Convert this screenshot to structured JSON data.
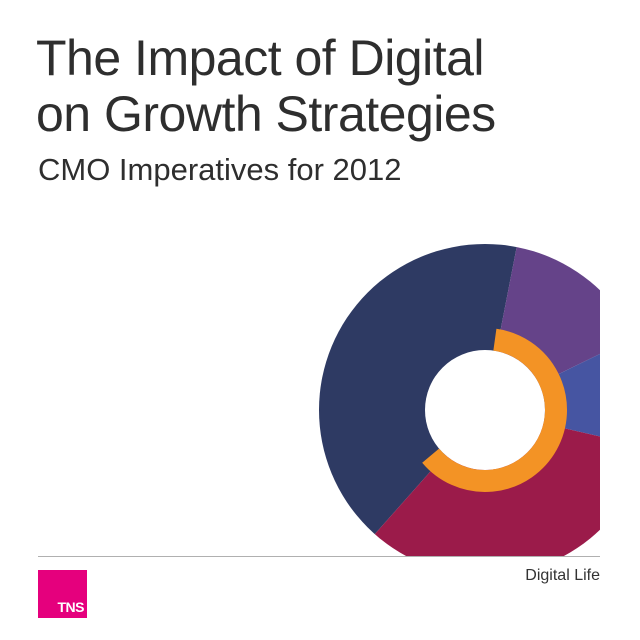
{
  "title_line1": "The Impact of Digital",
  "title_line2": "on Growth Strategies",
  "subtitle": "CMO Imperatives for 2012",
  "footer": "Digital Life",
  "logo_text": "TNS",
  "colors": {
    "logo": "#e5007d",
    "navy": "#2e3a63",
    "purple": "#654389",
    "blue": "#4655a2",
    "crimson": "#9b1b4a",
    "orange": "#f39325"
  }
}
